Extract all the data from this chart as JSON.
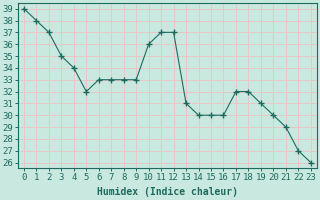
{
  "x": [
    0,
    1,
    2,
    3,
    4,
    5,
    6,
    7,
    8,
    9,
    10,
    11,
    12,
    13,
    14,
    15,
    16,
    17,
    18,
    19,
    20,
    21,
    22,
    23
  ],
  "y": [
    39,
    38,
    37,
    35,
    34,
    32,
    33,
    33,
    33,
    33,
    36,
    37,
    37,
    31,
    30,
    30,
    30,
    32,
    32,
    31,
    30,
    29,
    27,
    26
  ],
  "line_color": "#1e6b5e",
  "marker": "+",
  "marker_size": 4,
  "bg_color": "#c8e8e0",
  "grid_color": "#e8c8c8",
  "xlabel": "Humidex (Indice chaleur)",
  "ylabel_ticks": [
    26,
    27,
    28,
    29,
    30,
    31,
    32,
    33,
    34,
    35,
    36,
    37,
    38,
    39
  ],
  "ylim": [
    25.5,
    39.5
  ],
  "xlim": [
    -0.5,
    23.5
  ],
  "xticks": [
    0,
    1,
    2,
    3,
    4,
    5,
    6,
    7,
    8,
    9,
    10,
    11,
    12,
    13,
    14,
    15,
    16,
    17,
    18,
    19,
    20,
    21,
    22,
    23
  ],
  "xlabel_fontsize": 7,
  "tick_fontsize": 6.5,
  "spine_color": "#1e6b5e",
  "tick_color": "#1e6b5e",
  "label_color": "#1e6b5e"
}
